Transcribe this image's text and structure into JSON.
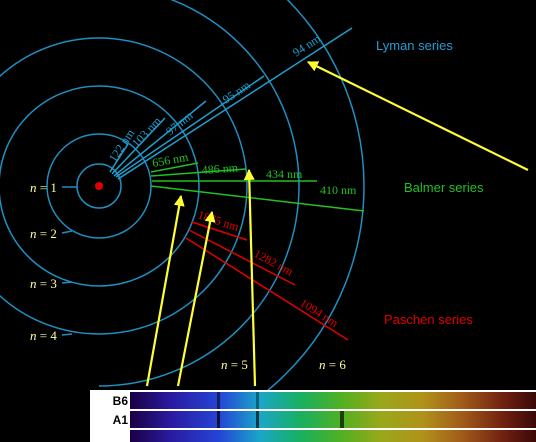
{
  "colors": {
    "background": "#000000",
    "orbit": "#1f8fc0",
    "lyman": "#1f9fd0",
    "balmer": "#22c022",
    "paschen": "#e00000",
    "arrow": "#ffff33",
    "n_label": "#ffff99",
    "nucleus": "#e00000"
  },
  "levels": {
    "n1": {
      "var": "n",
      "eq": " = 1"
    },
    "n2": {
      "var": "n",
      "eq": " = 2"
    },
    "n3": {
      "var": "n",
      "eq": " = 3"
    },
    "n4": {
      "var": "n",
      "eq": " = 4"
    },
    "n5": {
      "var": "n",
      "eq": " = 5"
    },
    "n6": {
      "var": "n",
      "eq": " = 6"
    }
  },
  "series": {
    "lyman": {
      "name": "Lyman series",
      "lines": [
        "122 nm",
        "103 nm",
        "97 nm",
        "95 nm",
        "94 nm"
      ]
    },
    "balmer": {
      "name": "Balmer series",
      "lines": [
        "656 nm",
        "486 nm",
        "434 nm",
        "410 nm"
      ]
    },
    "paschen": {
      "name": "Paschen series",
      "lines": [
        "1875 nm",
        "1282 nm",
        "1094 nm"
      ]
    }
  },
  "spectra": {
    "b6_label": "B6",
    "a1_label": "A1"
  }
}
